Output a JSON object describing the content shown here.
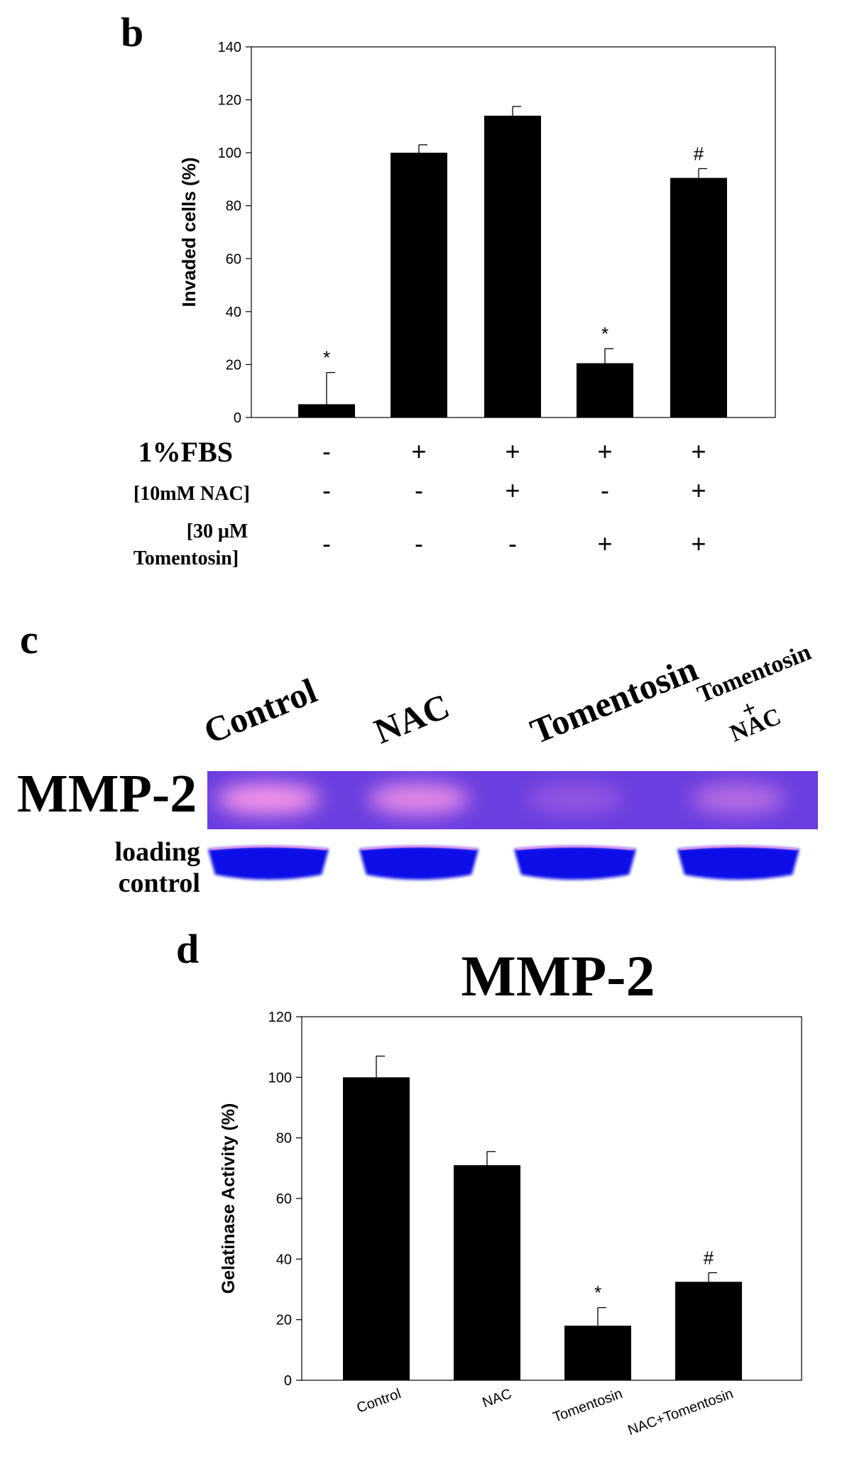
{
  "panel_b": {
    "letter": "b",
    "chart_data": {
      "type": "bar",
      "ylabel": "Invaded cells (%)",
      "ylim": [
        0,
        140
      ],
      "yticks": [
        0,
        20,
        40,
        60,
        80,
        100,
        120,
        140
      ],
      "values": [
        5,
        100,
        114,
        20.5,
        90.5
      ],
      "errors": [
        12,
        3,
        3.5,
        5.5,
        3.5
      ],
      "annotations": [
        "*",
        "",
        "",
        "*",
        "#"
      ],
      "grid": false
    },
    "conditions": [
      {
        "label": "1%FBS",
        "values": [
          "-",
          "+",
          "+",
          "+",
          "+"
        ]
      },
      {
        "label": "[10mM NAC]",
        "values": [
          "-",
          "-",
          "+",
          "-",
          "+"
        ]
      },
      {
        "label_line1": "[30 μM",
        "label_line2": "Tomentosin]",
        "values": [
          "-",
          "-",
          "-",
          "+",
          "+"
        ]
      }
    ]
  },
  "panel_c": {
    "letter": "c",
    "lanes": [
      "Control",
      "NAC",
      "Tomentosin"
    ],
    "lane4_line1": "Tomentosin",
    "lane4_plus": "+",
    "lane4_line2": "NAC",
    "row_label": "MMP-2",
    "loading_line1": "loading",
    "loading_line2": "control",
    "band_intensity": [
      1.0,
      0.85,
      0.15,
      0.45
    ],
    "colors": {
      "gel": "#6a3ee0",
      "band": "#ff9ae8",
      "loading": "#0a10e8"
    }
  },
  "panel_d": {
    "letter": "d",
    "title": "MMP-2",
    "chart_data": {
      "type": "bar",
      "categories": [
        "Control",
        "NAC",
        "Tomentosin",
        "NAC+Tomentosin"
      ],
      "ylabel": "Gelatinase Activity (%)",
      "ylim": [
        0,
        120
      ],
      "yticks": [
        0,
        20,
        40,
        60,
        80,
        100,
        120
      ],
      "values": [
        100,
        71,
        18,
        32.5
      ],
      "errors": [
        7,
        4.5,
        6,
        3
      ],
      "annotations": [
        "",
        "",
        "*",
        "#"
      ],
      "grid": false
    }
  }
}
